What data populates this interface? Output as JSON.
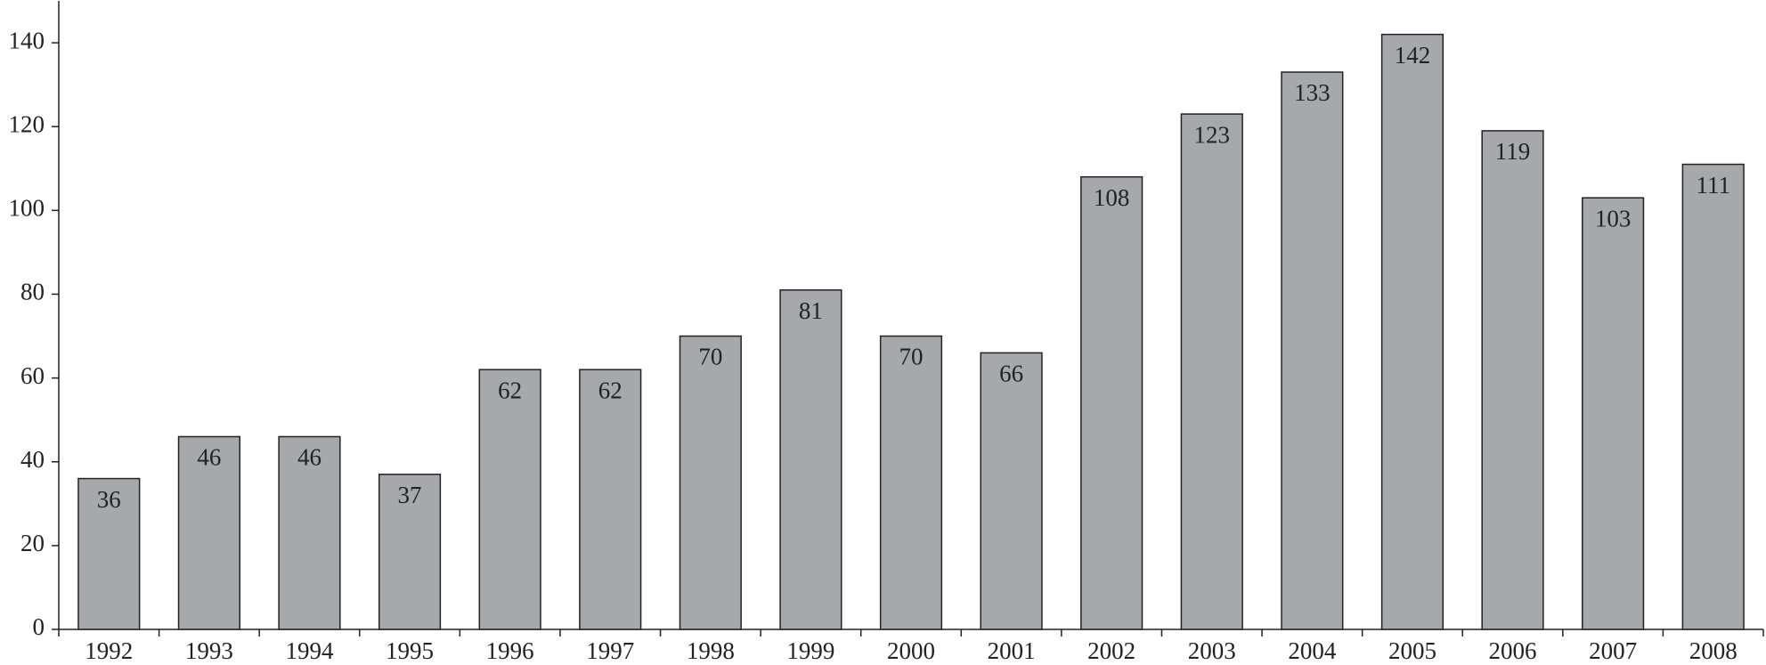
{
  "chart_data": {
    "type": "bar",
    "categories": [
      "1992",
      "1993",
      "1994",
      "1995",
      "1996",
      "1997",
      "1998",
      "1999",
      "2000",
      "2001",
      "2002",
      "2003",
      "2004",
      "2005",
      "2006",
      "2007",
      "2008"
    ],
    "values": [
      36,
      46,
      46,
      37,
      62,
      62,
      70,
      81,
      70,
      66,
      108,
      123,
      133,
      142,
      119,
      103,
      111
    ],
    "color": "#a7a8ab",
    "ylim": [
      0,
      150
    ],
    "yticks": [
      0,
      20,
      40,
      60,
      80,
      100,
      120,
      140
    ],
    "grid": false
  }
}
